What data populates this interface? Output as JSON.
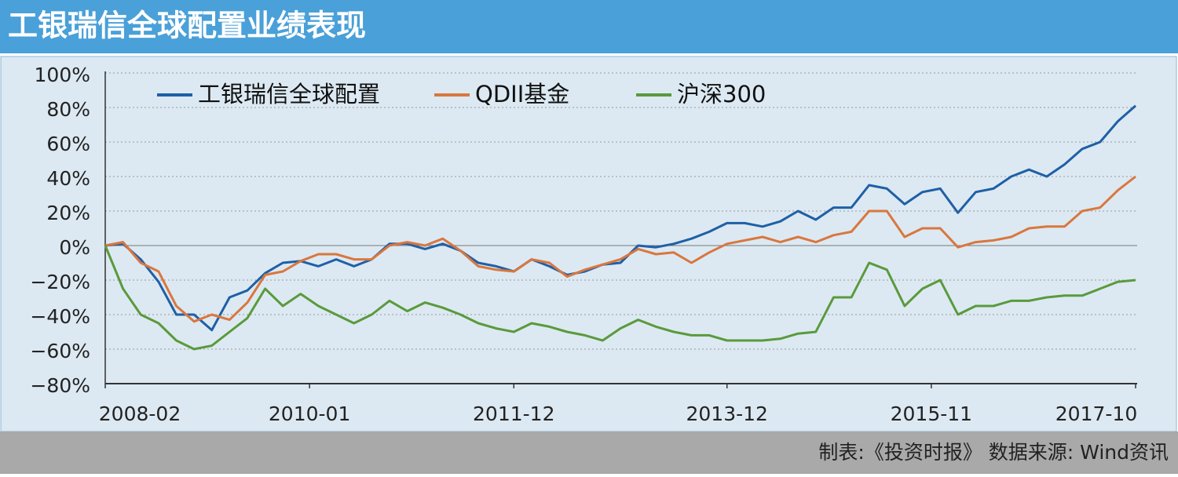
{
  "chart_data": {
    "type": "line",
    "title": "工银瑞信全球配置业绩表现",
    "source": "制表:《投资时报》 数据来源: Wind资讯",
    "x": [
      "2008-02",
      "2008-04",
      "2008-06",
      "2008-08",
      "2008-10",
      "2008-12",
      "2009-02",
      "2009-04",
      "2009-06",
      "2009-08",
      "2009-10",
      "2009-12",
      "2010-02",
      "2010-04",
      "2010-06",
      "2010-08",
      "2010-10",
      "2010-12",
      "2011-02",
      "2011-04",
      "2011-06",
      "2011-08",
      "2011-10",
      "2011-12",
      "2012-02",
      "2012-04",
      "2012-06",
      "2012-08",
      "2012-10",
      "2012-12",
      "2013-02",
      "2013-04",
      "2013-06",
      "2013-08",
      "2013-10",
      "2013-12",
      "2014-02",
      "2014-04",
      "2014-06",
      "2014-08",
      "2014-10",
      "2014-12",
      "2015-02",
      "2015-04",
      "2015-06",
      "2015-08",
      "2015-10",
      "2015-12",
      "2016-02",
      "2016-04",
      "2016-06",
      "2016-08",
      "2016-10",
      "2016-12",
      "2017-02",
      "2017-04",
      "2017-06",
      "2017-08",
      "2017-10"
    ],
    "series": [
      {
        "name": "工银瑞信全球配置",
        "color": "#1f5fa6",
        "values": [
          0,
          1,
          -8,
          -21,
          -40,
          -40,
          -49,
          -30,
          -26,
          -16,
          -10,
          -9,
          -12,
          -8,
          -12,
          -8,
          1,
          1,
          -2,
          1,
          -3,
          -10,
          -12,
          -15,
          -8,
          -12,
          -17,
          -15,
          -11,
          -10,
          0,
          -1,
          1,
          4,
          8,
          13,
          13,
          11,
          14,
          20,
          15,
          22,
          22,
          35,
          33,
          24,
          31,
          33,
          19,
          31,
          33,
          40,
          44,
          40,
          47,
          56,
          60,
          72,
          81
        ]
      },
      {
        "name": "QDII基金",
        "color": "#d9773e",
        "values": [
          0,
          2,
          -10,
          -15,
          -35,
          -44,
          -40,
          -43,
          -33,
          -17,
          -15,
          -9,
          -5,
          -5,
          -8,
          -8,
          0,
          2,
          0,
          4,
          -3,
          -12,
          -14,
          -15,
          -8,
          -10,
          -18,
          -14,
          -11,
          -8,
          -2,
          -5,
          -4,
          -10,
          -4,
          1,
          3,
          5,
          2,
          5,
          2,
          6,
          8,
          20,
          20,
          5,
          10,
          10,
          -1,
          2,
          3,
          5,
          10,
          11,
          11,
          20,
          22,
          32,
          40
        ]
      },
      {
        "name": "沪深300",
        "color": "#5a9a3c",
        "values": [
          0,
          -25,
          -40,
          -45,
          -55,
          -60,
          -58,
          -50,
          -42,
          -25,
          -35,
          -28,
          -35,
          -40,
          -45,
          -40,
          -32,
          -38,
          -33,
          -36,
          -40,
          -45,
          -48,
          -50,
          -45,
          -47,
          -50,
          -52,
          -55,
          -48,
          -43,
          -47,
          -50,
          -52,
          -52,
          -55,
          -55,
          -55,
          -54,
          -51,
          -50,
          -30,
          -30,
          -10,
          -14,
          -35,
          -25,
          -20,
          -40,
          -35,
          -35,
          -32,
          -32,
          -30,
          -29,
          -29,
          -25,
          -21,
          -20
        ]
      }
    ],
    "xlim": [
      "2008-02",
      "2017-10"
    ],
    "xticks": [
      "2008-02",
      "2010-01",
      "2011-12",
      "2013-12",
      "2015-11",
      "2017-10"
    ],
    "ylim": [
      -80,
      100
    ],
    "yticks": [
      {
        "value": -80,
        "label": "−80%"
      },
      {
        "value": -60,
        "label": "−60%"
      },
      {
        "value": -40,
        "label": "−40%"
      },
      {
        "value": -20,
        "label": "−20%"
      },
      {
        "value": 0,
        "label": "0%"
      },
      {
        "value": 20,
        "label": "20%"
      },
      {
        "value": 40,
        "label": "40%"
      },
      {
        "value": 60,
        "label": "60%"
      },
      {
        "value": 80,
        "label": "80%"
      },
      {
        "value": 100,
        "label": "100%"
      }
    ],
    "grid": true,
    "legend": "top-left"
  }
}
